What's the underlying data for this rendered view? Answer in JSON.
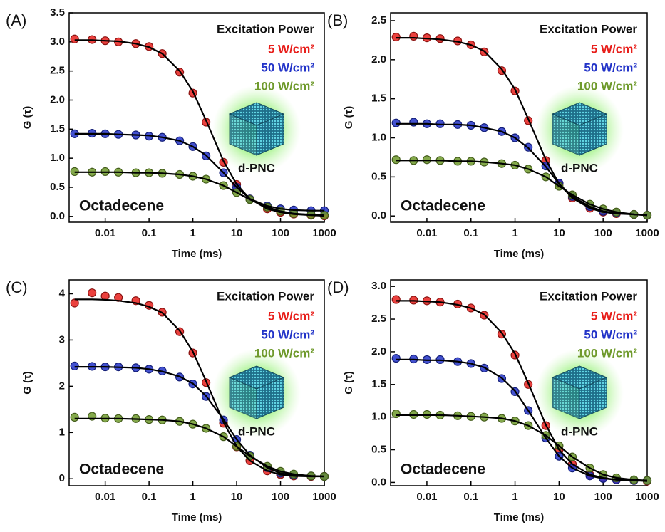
{
  "chart_data": [
    {
      "type": "scatter",
      "panel_label": "(A)",
      "legend_title": "Excitation Power",
      "xlabel": "Time (ms)",
      "ylabel": "G (τ)",
      "annotations": [
        "Octadecene",
        "d-PNC"
      ],
      "xscale": "log",
      "x": [
        0.002,
        0.005,
        0.01,
        0.02,
        0.05,
        0.1,
        0.2,
        0.5,
        1,
        2,
        5,
        10,
        20,
        50,
        100,
        200,
        500,
        1000
      ],
      "xlim": [
        0.0015,
        1000
      ],
      "xticks": [
        0.01,
        0.1,
        1,
        10,
        100,
        1000
      ],
      "ylim": [
        -0.1,
        3.5
      ],
      "yticks": [
        {
          "value": 0,
          "label": "0.0"
        },
        0.5,
        {
          "value": 1,
          "label": "1.0"
        },
        1.5,
        {
          "value": 2,
          "label": "2.0"
        },
        2.5,
        {
          "value": 3,
          "label": "3.0"
        },
        3.5
      ],
      "series": [
        {
          "name": "5 W/cm²",
          "color": "#e8201c",
          "values": [
            3.05,
            3.04,
            3.02,
            3.0,
            2.97,
            2.92,
            2.8,
            2.48,
            2.12,
            1.62,
            0.93,
            0.55,
            0.3,
            0.13,
            0.07,
            0.04,
            0.02,
            0.01
          ],
          "fit": [
            3.03,
            3.03,
            3.02,
            3.01,
            2.97,
            2.91,
            2.8,
            2.5,
            2.15,
            1.65,
            0.95,
            0.55,
            0.3,
            0.13,
            0.07,
            0.04,
            0.02,
            0.01
          ]
        },
        {
          "name": "50 W/cm²",
          "color": "#2233c8",
          "values": [
            1.42,
            1.43,
            1.42,
            1.41,
            1.4,
            1.38,
            1.36,
            1.3,
            1.2,
            1.04,
            0.75,
            0.5,
            0.3,
            0.18,
            0.13,
            0.11,
            0.1,
            0.1
          ],
          "fit": [
            1.42,
            1.42,
            1.42,
            1.41,
            1.4,
            1.39,
            1.36,
            1.3,
            1.2,
            1.05,
            0.75,
            0.5,
            0.3,
            0.18,
            0.13,
            0.11,
            0.1,
            0.1
          ]
        },
        {
          "name": "100 W/cm²",
          "color": "#6f9a2c",
          "values": [
            0.77,
            0.76,
            0.77,
            0.76,
            0.75,
            0.75,
            0.74,
            0.72,
            0.69,
            0.64,
            0.53,
            0.41,
            0.29,
            0.16,
            0.09,
            0.05,
            0.03,
            0.02
          ],
          "fit": [
            0.76,
            0.76,
            0.76,
            0.76,
            0.75,
            0.75,
            0.74,
            0.72,
            0.69,
            0.64,
            0.53,
            0.41,
            0.29,
            0.16,
            0.09,
            0.05,
            0.03,
            0.02
          ]
        }
      ]
    },
    {
      "type": "scatter",
      "panel_label": "(B)",
      "legend_title": "Excitation Power",
      "xlabel": "Time (ms)",
      "ylabel": "G (τ)",
      "annotations": [
        "Octadecene",
        "d-PNC"
      ],
      "xscale": "log",
      "x": [
        0.002,
        0.005,
        0.01,
        0.02,
        0.05,
        0.1,
        0.2,
        0.5,
        1,
        2,
        5,
        10,
        20,
        50,
        100,
        200,
        500,
        1000
      ],
      "xlim": [
        0.0015,
        1000
      ],
      "xticks": [
        0.01,
        0.1,
        1,
        10,
        100,
        1000
      ],
      "ylim": [
        -0.08,
        2.6
      ],
      "yticks": [
        {
          "value": 0,
          "label": "0.0"
        },
        0.5,
        {
          "value": 1,
          "label": "1.0"
        },
        1.5,
        {
          "value": 2,
          "label": "2.0"
        },
        2.5
      ],
      "series": [
        {
          "name": "5 W/cm²",
          "color": "#e8201c",
          "values": [
            2.29,
            2.3,
            2.28,
            2.27,
            2.24,
            2.19,
            2.1,
            1.86,
            1.6,
            1.22,
            0.71,
            0.41,
            0.23,
            0.1,
            0.05,
            0.03,
            0.02,
            0.01
          ],
          "fit": [
            2.28,
            2.28,
            2.27,
            2.26,
            2.23,
            2.19,
            2.11,
            1.88,
            1.62,
            1.24,
            0.72,
            0.41,
            0.23,
            0.1,
            0.05,
            0.03,
            0.02,
            0.01
          ]
        },
        {
          "name": "50 W/cm²",
          "color": "#2233c8",
          "values": [
            1.19,
            1.2,
            1.18,
            1.18,
            1.17,
            1.16,
            1.13,
            1.08,
            1.0,
            0.88,
            0.64,
            0.42,
            0.25,
            0.12,
            0.06,
            0.04,
            0.02,
            0.01
          ],
          "fit": [
            1.18,
            1.18,
            1.18,
            1.17,
            1.17,
            1.16,
            1.13,
            1.08,
            1.0,
            0.87,
            0.63,
            0.41,
            0.25,
            0.12,
            0.06,
            0.04,
            0.02,
            0.01
          ]
        },
        {
          "name": "100 W/cm²",
          "color": "#6f9a2c",
          "values": [
            0.72,
            0.71,
            0.72,
            0.71,
            0.7,
            0.7,
            0.69,
            0.67,
            0.65,
            0.6,
            0.5,
            0.38,
            0.27,
            0.15,
            0.09,
            0.05,
            0.02,
            0.01
          ],
          "fit": [
            0.71,
            0.71,
            0.71,
            0.71,
            0.7,
            0.7,
            0.69,
            0.67,
            0.65,
            0.6,
            0.5,
            0.38,
            0.27,
            0.15,
            0.09,
            0.05,
            0.02,
            0.01
          ]
        }
      ]
    },
    {
      "type": "scatter",
      "panel_label": "(C)",
      "legend_title": "Excitation Power",
      "xlabel": "Time (ms)",
      "ylabel": "G (τ)",
      "annotations": [
        "Octadecene",
        "d-PNC"
      ],
      "xscale": "log",
      "x": [
        0.002,
        0.005,
        0.01,
        0.02,
        0.05,
        0.1,
        0.2,
        0.5,
        1,
        2,
        5,
        10,
        20,
        50,
        100,
        200,
        500,
        1000
      ],
      "xlim": [
        0.0015,
        1000
      ],
      "xticks": [
        0.01,
        0.1,
        1,
        10,
        100,
        1000
      ],
      "ylim": [
        -0.15,
        4.3
      ],
      "yticks": [
        0,
        1,
        2,
        3,
        4
      ],
      "series": [
        {
          "name": "5 W/cm²",
          "color": "#e8201c",
          "values": [
            3.8,
            4.02,
            3.95,
            3.92,
            3.85,
            3.75,
            3.6,
            3.18,
            2.72,
            2.08,
            1.2,
            0.69,
            0.39,
            0.17,
            0.09,
            0.06,
            0.05,
            0.05
          ],
          "fit": [
            3.88,
            3.88,
            3.87,
            3.85,
            3.8,
            3.72,
            3.59,
            3.2,
            2.75,
            2.11,
            1.22,
            0.7,
            0.39,
            0.17,
            0.09,
            0.06,
            0.05,
            0.05
          ]
        },
        {
          "name": "50 W/cm²",
          "color": "#2233c8",
          "values": [
            2.44,
            2.43,
            2.42,
            2.42,
            2.4,
            2.37,
            2.33,
            2.2,
            2.05,
            1.78,
            1.27,
            0.85,
            0.51,
            0.24,
            0.12,
            0.08,
            0.06,
            0.05
          ],
          "fit": [
            2.42,
            2.42,
            2.42,
            2.41,
            2.4,
            2.37,
            2.32,
            2.21,
            2.06,
            1.79,
            1.28,
            0.85,
            0.51,
            0.24,
            0.12,
            0.08,
            0.06,
            0.05
          ]
        },
        {
          "name": "100 W/cm²",
          "color": "#6f9a2c",
          "values": [
            1.33,
            1.35,
            1.31,
            1.3,
            1.3,
            1.28,
            1.27,
            1.24,
            1.18,
            1.09,
            0.91,
            0.7,
            0.49,
            0.27,
            0.16,
            0.1,
            0.06,
            0.05
          ],
          "fit": [
            1.3,
            1.3,
            1.3,
            1.3,
            1.29,
            1.28,
            1.27,
            1.24,
            1.18,
            1.09,
            0.91,
            0.7,
            0.49,
            0.27,
            0.16,
            0.1,
            0.06,
            0.05
          ]
        }
      ]
    },
    {
      "type": "scatter",
      "panel_label": "(D)",
      "legend_title": "Excitation Power",
      "xlabel": "Time (ms)",
      "ylabel": "G (τ)",
      "annotations": [
        "Octadecene",
        "d-PNC"
      ],
      "xscale": "log",
      "x": [
        0.002,
        0.005,
        0.01,
        0.02,
        0.05,
        0.1,
        0.2,
        0.5,
        1,
        2,
        5,
        10,
        20,
        50,
        100,
        200,
        500,
        1000
      ],
      "xlim": [
        0.0015,
        1000
      ],
      "xticks": [
        0.01,
        0.1,
        1,
        10,
        100,
        1000
      ],
      "ylim": [
        -0.05,
        3.1
      ],
      "yticks": [
        {
          "value": 0,
          "label": "0.0"
        },
        0.5,
        {
          "value": 1,
          "label": "1.0"
        },
        1.5,
        {
          "value": 2,
          "label": "2.0"
        },
        2.5,
        {
          "value": 3,
          "label": "3.0"
        }
      ],
      "series": [
        {
          "name": "5 W/cm²",
          "color": "#e8201c",
          "values": [
            2.8,
            2.79,
            2.78,
            2.76,
            2.73,
            2.67,
            2.56,
            2.27,
            1.95,
            1.5,
            0.87,
            0.5,
            0.28,
            0.12,
            0.07,
            0.04,
            0.03,
            0.02
          ],
          "fit": [
            2.78,
            2.78,
            2.77,
            2.76,
            2.72,
            2.67,
            2.57,
            2.29,
            1.97,
            1.52,
            0.88,
            0.5,
            0.28,
            0.12,
            0.07,
            0.04,
            0.03,
            0.02
          ]
        },
        {
          "name": "50 W/cm²",
          "color": "#2233c8",
          "values": [
            1.9,
            1.89,
            1.88,
            1.88,
            1.85,
            1.82,
            1.75,
            1.59,
            1.39,
            1.1,
            0.68,
            0.4,
            0.22,
            0.1,
            0.06,
            0.04,
            0.03,
            0.03
          ],
          "fit": [
            1.88,
            1.88,
            1.87,
            1.87,
            1.85,
            1.82,
            1.76,
            1.6,
            1.4,
            1.1,
            0.68,
            0.4,
            0.22,
            0.1,
            0.06,
            0.04,
            0.03,
            0.03
          ]
        },
        {
          "name": "100 W/cm²",
          "color": "#6f9a2c",
          "values": [
            1.05,
            1.04,
            1.04,
            1.03,
            1.02,
            1.01,
            1.0,
            0.98,
            0.94,
            0.87,
            0.72,
            0.56,
            0.39,
            0.22,
            0.12,
            0.07,
            0.04,
            0.03
          ],
          "fit": [
            1.03,
            1.03,
            1.03,
            1.03,
            1.02,
            1.01,
            1.0,
            0.98,
            0.94,
            0.87,
            0.72,
            0.56,
            0.39,
            0.22,
            0.12,
            0.07,
            0.04,
            0.03
          ]
        }
      ]
    }
  ]
}
